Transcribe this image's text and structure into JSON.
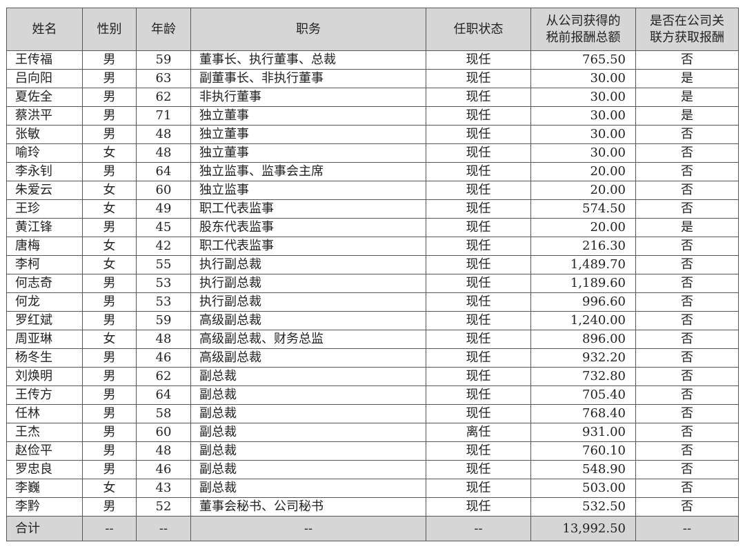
{
  "headers": [
    "姓名",
    "性别",
    "年龄",
    "职务",
    "任职状态",
    "从公司获得的税前报酬总额",
    "是否在公司关联方获取报酬"
  ],
  "header_lines": {
    "pay": [
      "从公司获得的",
      "税前报酬总额"
    ],
    "related": [
      "是否在公司关",
      "联方获取报酬"
    ]
  },
  "rows": [
    [
      "王传福",
      "男",
      "59",
      "董事长、执行董事、总裁",
      "现任",
      "765.50",
      "否"
    ],
    [
      "吕向阳",
      "男",
      "63",
      "副董事长、非执行董事",
      "现任",
      "30.00",
      "是"
    ],
    [
      "夏佐全",
      "男",
      "62",
      "非执行董事",
      "现任",
      "30.00",
      "是"
    ],
    [
      "蔡洪平",
      "男",
      "71",
      "独立董事",
      "现任",
      "30.00",
      "是"
    ],
    [
      "张敏",
      "男",
      "48",
      "独立董事",
      "现任",
      "30.00",
      "否"
    ],
    [
      "喻玲",
      "女",
      "48",
      "独立董事",
      "现任",
      "30.00",
      "否"
    ],
    [
      "李永钊",
      "男",
      "64",
      "独立监事、监事会主席",
      "现任",
      "20.00",
      "否"
    ],
    [
      "朱爱云",
      "女",
      "60",
      "独立监事",
      "现任",
      "20.00",
      "否"
    ],
    [
      "王珍",
      "女",
      "49",
      "职工代表监事",
      "现任",
      "574.50",
      "否"
    ],
    [
      "黄江锋",
      "男",
      "45",
      "股东代表监事",
      "现任",
      "20.00",
      "是"
    ],
    [
      "唐梅",
      "女",
      "42",
      "职工代表监事",
      "现任",
      "216.30",
      "否"
    ],
    [
      "李柯",
      "女",
      "55",
      "执行副总裁",
      "现任",
      "1,489.70",
      "否"
    ],
    [
      "何志奇",
      "男",
      "53",
      "执行副总裁",
      "现任",
      "1,189.60",
      "否"
    ],
    [
      "何龙",
      "男",
      "53",
      "执行副总裁",
      "现任",
      "996.60",
      "否"
    ],
    [
      "罗红斌",
      "男",
      "59",
      "高级副总裁",
      "现任",
      "1,240.00",
      "否"
    ],
    [
      "周亚琳",
      "女",
      "48",
      "高级副总裁、财务总监",
      "现任",
      "896.00",
      "否"
    ],
    [
      "杨冬生",
      "男",
      "46",
      "高级副总裁",
      "现任",
      "932.20",
      "否"
    ],
    [
      "刘焕明",
      "男",
      "62",
      "副总裁",
      "现任",
      "732.80",
      "否"
    ],
    [
      "王传方",
      "男",
      "64",
      "副总裁",
      "现任",
      "705.40",
      "否"
    ],
    [
      "任林",
      "男",
      "58",
      "副总裁",
      "现任",
      "768.40",
      "否"
    ],
    [
      "王杰",
      "男",
      "60",
      "副总裁",
      "离任",
      "931.00",
      "否"
    ],
    [
      "赵俭平",
      "男",
      "48",
      "副总裁",
      "现任",
      "760.10",
      "否"
    ],
    [
      "罗忠良",
      "男",
      "46",
      "副总裁",
      "现任",
      "548.90",
      "否"
    ],
    [
      "李巍",
      "女",
      "43",
      "副总裁",
      "现任",
      "503.00",
      "否"
    ],
    [
      "李黔",
      "男",
      "52",
      "董事会秘书、公司秘书",
      "现任",
      "532.50",
      "否"
    ]
  ],
  "total": [
    "合计",
    "--",
    "--",
    "--",
    "--",
    "13,992.50",
    "--"
  ]
}
